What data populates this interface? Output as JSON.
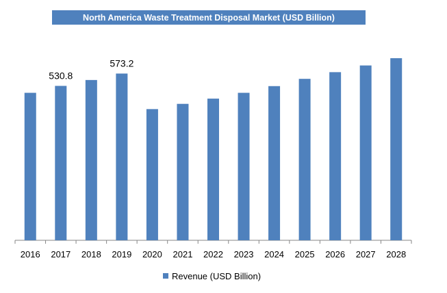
{
  "chart_data": {
    "type": "bar",
    "title": "North America Waste Treatment Disposal Market (USD Billion)",
    "categories": [
      "2016",
      "2017",
      "2018",
      "2019",
      "2020",
      "2021",
      "2022",
      "2023",
      "2024",
      "2025",
      "2026",
      "2027",
      "2028"
    ],
    "series": [
      {
        "name": "Revenue (USD Billion)",
        "values": [
          507,
          530.8,
          551,
          573.2,
          451,
          469,
          487,
          507,
          530,
          555,
          578,
          601,
          626
        ],
        "color": "#4f81bd"
      }
    ],
    "data_labels": [
      {
        "index": 1,
        "text": "530.8"
      },
      {
        "index": 3,
        "text": "573.2"
      }
    ],
    "ylim": [
      0,
      650
    ],
    "grid": false,
    "legend_position": "bottom"
  }
}
